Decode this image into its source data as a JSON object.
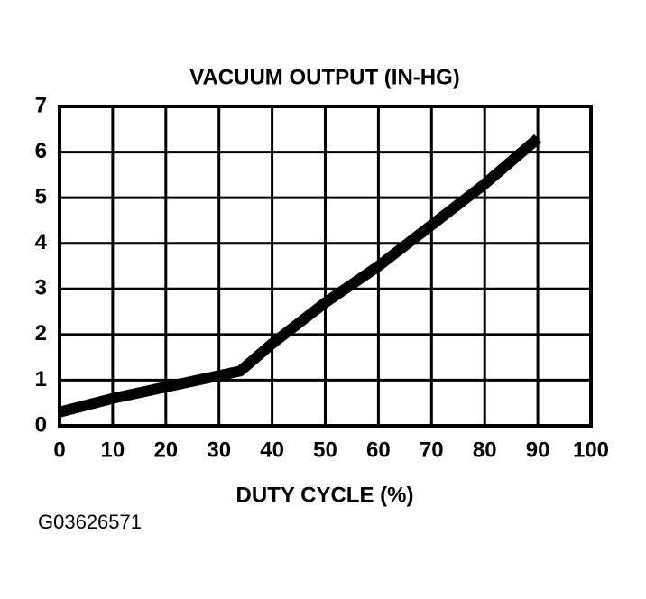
{
  "chart_data": {
    "type": "line",
    "title": "VACUUM OUTPUT (IN-HG)",
    "x_label": "DUTY CYCLE (%)",
    "figure_id": "G03626571",
    "x": [
      0,
      10,
      20,
      30,
      34,
      40,
      50,
      60,
      70,
      80,
      90
    ],
    "series": [
      {
        "color": "#000000",
        "values": [
          0.3,
          0.6,
          0.85,
          1.1,
          1.2,
          1.8,
          2.7,
          3.5,
          4.4,
          5.3,
          6.3
        ]
      }
    ],
    "xlim": [
      0,
      100
    ],
    "xticks": [
      0,
      10,
      20,
      30,
      40,
      50,
      60,
      70,
      80,
      90,
      100
    ],
    "ylim": [
      0,
      7
    ],
    "yticks": [
      0,
      1,
      2,
      3,
      4,
      5,
      6,
      7
    ],
    "grid": true
  }
}
